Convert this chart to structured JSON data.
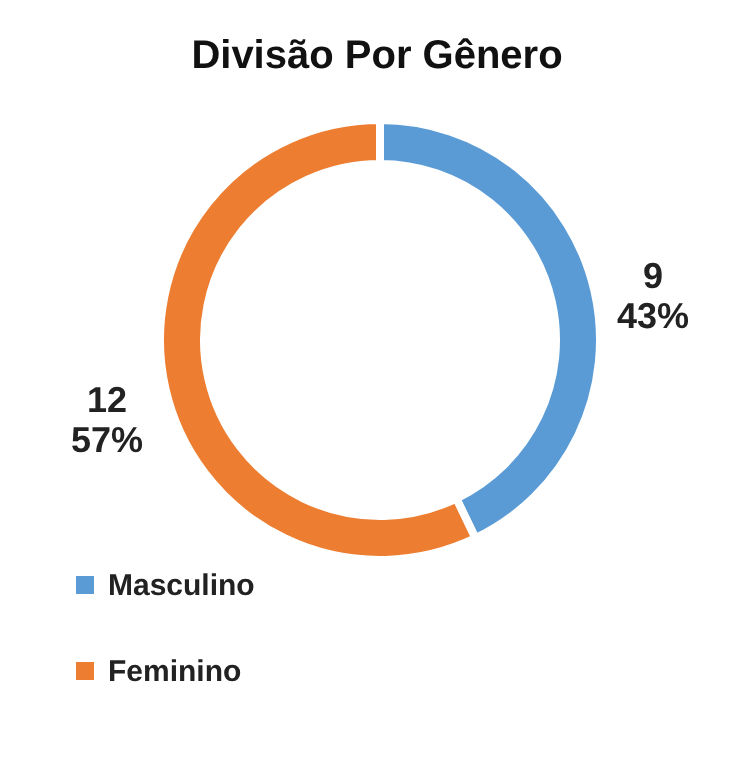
{
  "chart_data": {
    "type": "donut",
    "title": "Divisão Por Gênero",
    "categories": [
      "Masculino",
      "Feminino"
    ],
    "values": [
      9,
      12
    ],
    "colors": [
      "#5b9bd5",
      "#ed7d31"
    ],
    "value_labels": [
      "9\n43%",
      "12\n57%"
    ],
    "legend": "bottom left"
  }
}
